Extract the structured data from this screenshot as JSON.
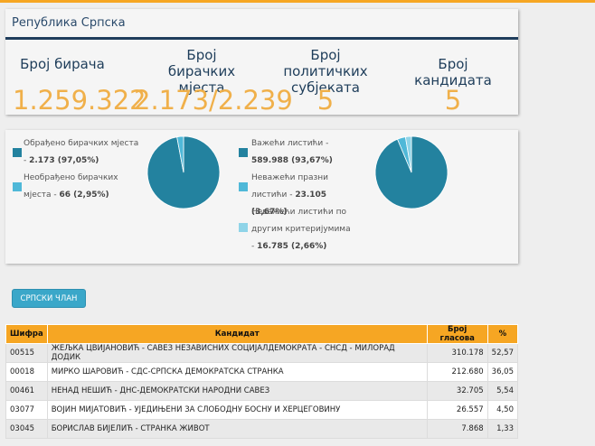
{
  "header": {
    "title": "Република Српска"
  },
  "stats": [
    {
      "label": "Број бирача",
      "value": "1.259.322"
    },
    {
      "label": "Број бирачких мјеста",
      "value": "2.173/2.239"
    },
    {
      "label": "Број политичких субјеката",
      "value": "5"
    },
    {
      "label": "Број кандидата",
      "value": "5"
    }
  ],
  "polling_stations": {
    "processed_label": "Обрађено бирачких мјеста - ",
    "processed_value": "2.173 (97,05%)",
    "unprocessed_label": "Необрађено бирачких мјеста - ",
    "unprocessed_value": "66 (2,95%)"
  },
  "ballots": {
    "valid_label": "Важећи листићи - ",
    "valid_value": "589.988 (93,67%)",
    "empty_label": "Неважећи празни листићи - ",
    "empty_value": "23.105 (3,67%)",
    "other_label": "Неважећи листићи по другим критеријумима - ",
    "other_value": "16.785 (2,66%)"
  },
  "colors": {
    "dark_teal": "#23829f",
    "light_blue": "#4fb8d8",
    "pale_blue": "#8fd4e8",
    "accent_orange": "#f6a623",
    "value_orange": "#f0b04a"
  },
  "chart_data": [
    {
      "type": "pie",
      "categories": [
        "Обрађено бирачких мјеста",
        "Необрађено бирачких мјеста"
      ],
      "values": [
        97.05,
        2.95
      ]
    },
    {
      "type": "pie",
      "categories": [
        "Важећи листићи",
        "Неважећи празни листићи",
        "Неважећи листићи по другим критеријумима"
      ],
      "values": [
        93.67,
        3.67,
        2.66
      ]
    }
  ],
  "button": {
    "label": "СРПСКИ ЧЛАН"
  },
  "table": {
    "headers": [
      "Шифра",
      "Кандидат",
      "Број гласова",
      "%"
    ],
    "rows": [
      [
        "00515",
        "ЖЕЉКА ЦВИЈАНОВИЋ - САВЕЗ НЕЗАВИСНИХ СОЦИЈАЛДЕМОКРАТА - СНСД - МИЛОРАД ДОДИК",
        "310.178",
        "52,57"
      ],
      [
        "00018",
        "МИРКО ШАРОВИЋ - СДС-СРПСКА ДЕМОКРАТСКА СТРАНКА",
        "212.680",
        "36,05"
      ],
      [
        "00461",
        "НЕНАД НЕШИЋ - ДНС-ДЕМОКРАТСКИ НАРОДНИ САВЕЗ",
        "32.705",
        "5,54"
      ],
      [
        "03077",
        "ВОЈИН МИЈАТОВИЋ - УЈЕДИЊЕНИ ЗА СЛОБОДНУ БОСНУ И ХЕРЦЕГОВИНУ",
        "26.557",
        "4,50"
      ],
      [
        "03045",
        "БОРИСЛАВ БИЈЕЛИЋ - СТРАНКА ЖИВОТ",
        "7.868",
        "1,33"
      ]
    ]
  }
}
